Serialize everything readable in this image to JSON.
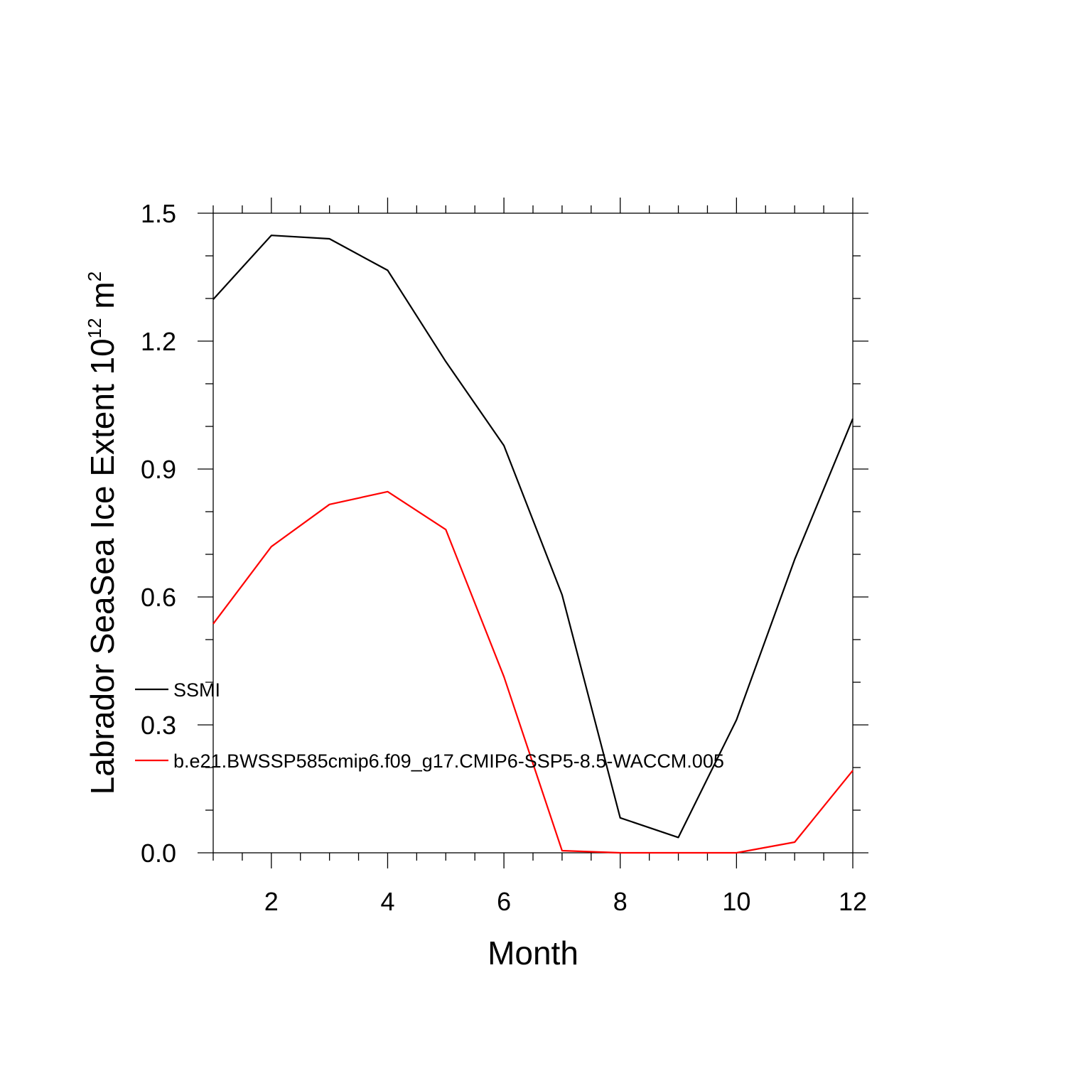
{
  "chart_data": {
    "type": "line",
    "xlabel": "Month",
    "ylabel_main": "Labrador SeaSea Ice Extent 10",
    "ylabel_sup": "12",
    "ylabel_unit": " m",
    "ylabel_unit_sup": "2",
    "xlim": [
      1,
      12
    ],
    "ylim": [
      0,
      1.5
    ],
    "x_ticks": [
      2,
      4,
      6,
      8,
      10,
      12
    ],
    "x_tick_labels": [
      "2",
      "4",
      "6",
      "8",
      "10",
      "12"
    ],
    "y_ticks": [
      0,
      0.3,
      0.6,
      0.9,
      1.2,
      1.5
    ],
    "y_tick_labels": [
      "0.0",
      "0.3",
      "0.6",
      "0.9",
      "1.2",
      "1.5"
    ],
    "grid": false,
    "legend_position": "lower-left",
    "x": [
      1,
      2,
      3,
      4,
      5,
      6,
      7,
      8,
      9,
      10,
      11,
      12
    ],
    "series": [
      {
        "name": "SSMI",
        "color": "#000000",
        "values": [
          1.298,
          1.448,
          1.44,
          1.366,
          1.152,
          0.955,
          0.605,
          0.082,
          0.036,
          0.312,
          0.688,
          1.018
        ]
      },
      {
        "name": "b.e21.BWSSP585cmip6.f09_g17.CMIP6-SSP5-8.5-WACCM.005",
        "color": "#ff0000",
        "values": [
          0.537,
          0.718,
          0.817,
          0.847,
          0.758,
          0.413,
          0.005,
          0.0,
          0.0,
          0.0,
          0.025,
          0.193
        ]
      }
    ]
  }
}
